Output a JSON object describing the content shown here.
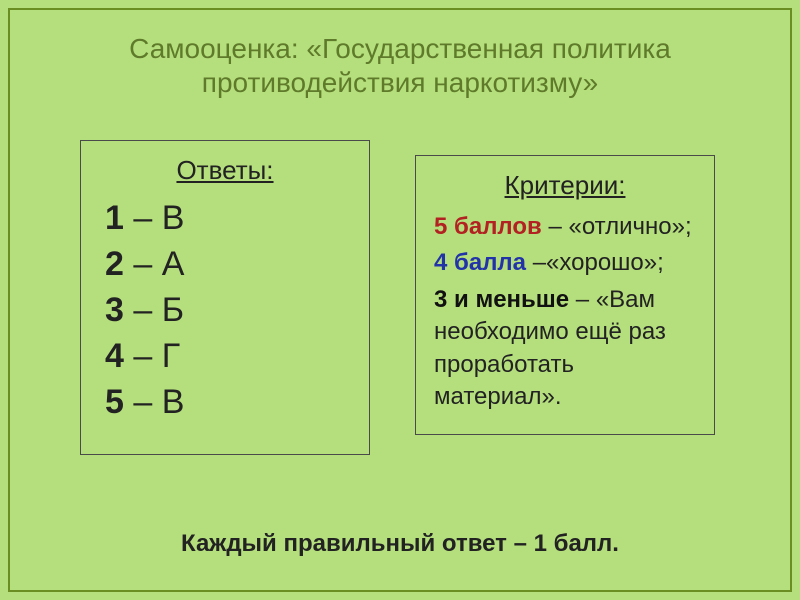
{
  "colors": {
    "background": "#b5df7c",
    "frame_border": "#6b8e23",
    "title_color": "#5e7a2a",
    "box_border": "#4a4a4a",
    "text": "#222222",
    "red": "#b22222",
    "blue": "#2233aa"
  },
  "title": "Самооценка: «Государственная политика противодействия наркотизму»",
  "answers_box": {
    "heading": "Ответы:",
    "items": [
      {
        "num": "1",
        "letter": "В"
      },
      {
        "num": "2",
        "letter": "А"
      },
      {
        "num": "3",
        "letter": "Б"
      },
      {
        "num": "4",
        "letter": "Г"
      },
      {
        "num": "5",
        "letter": "В"
      }
    ]
  },
  "criteria_box": {
    "heading": "Критерии:",
    "rows": [
      {
        "score": "5 баллов",
        "score_color": "red",
        "sep": " – ",
        "text": "«отлично»;"
      },
      {
        "score": "4 балла",
        "score_color": "blue",
        "sep": " –",
        "text": "«хорошо»;"
      },
      {
        "score": "3 и меньше",
        "score_color": "black",
        "sep": " – ",
        "text": "«Вам необходимо ещё раз проработать материал»."
      }
    ]
  },
  "footer": "Каждый правильный ответ – 1 балл."
}
